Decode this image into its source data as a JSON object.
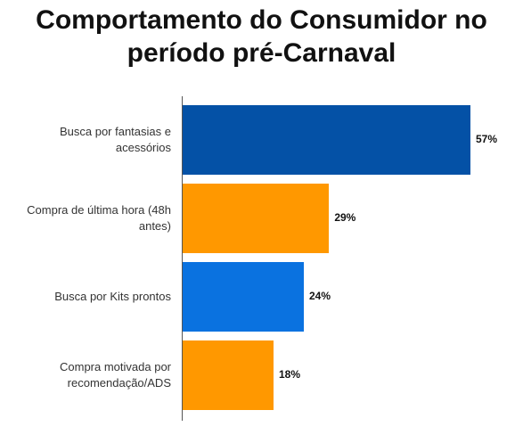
{
  "chart_data": {
    "type": "bar",
    "orientation": "horizontal",
    "title": "Comportamento do Consumidor no período pré-Carnaval",
    "categories": [
      "Busca por fantasias e acessórios",
      "Compra de última hora (48h antes)",
      "Busca por Kits prontos",
      "Compra motivada por recomendação/ADS"
    ],
    "values": [
      57,
      29,
      24,
      18
    ],
    "value_labels": [
      "57%",
      "29%",
      "24%",
      "18%"
    ],
    "colors": [
      "#0451a6",
      "#ff9800",
      "#0a72e0",
      "#ff9800"
    ]
  }
}
